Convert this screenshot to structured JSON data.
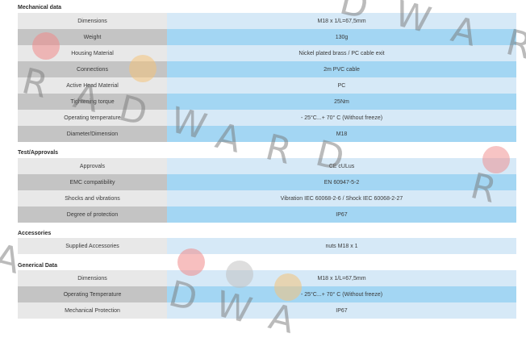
{
  "sections": [
    {
      "title": "Mechanical data",
      "rows": [
        {
          "label": "Dimensions",
          "value": "M18 x 1/L=67,5mm"
        },
        {
          "label": "Weight",
          "value": "130g"
        },
        {
          "label": "Housing Material",
          "value": "Nickel plated brass / PC cable exit"
        },
        {
          "label": "Connections",
          "value": "2m PVC cable"
        },
        {
          "label": "Active Head Material",
          "value": "PC"
        },
        {
          "label": "Tightening torque",
          "value": "25Nm"
        },
        {
          "label": "Operating temperature",
          "value": "- 25°C...+ 70° C (Without freeze)"
        },
        {
          "label": "Diameter/Dimension",
          "value": "M18"
        }
      ]
    },
    {
      "title": "Test/Approvals",
      "rows": [
        {
          "label": "Approvals",
          "value": "CE cULus"
        },
        {
          "label": "EMC compatibility",
          "value": "EN 60947-5-2"
        },
        {
          "label": "Shocks and vibrations",
          "value": "Vibration IEC 60068-2-6 / Shock IEC 60068-2-27"
        },
        {
          "label": "Degree of protection",
          "value": "IP67"
        }
      ]
    },
    {
      "title": "Accessories",
      "rows": [
        {
          "label": "Supplied Accessories",
          "value": "nuts M18 x 1"
        }
      ]
    },
    {
      "title": "Generical Data",
      "rows": [
        {
          "label": "Dimensions",
          "value": "M18 x 1/L=67,5mm"
        },
        {
          "label": "Operating Temperature",
          "value": "- 25°C...+ 70° C (Without freeze)"
        },
        {
          "label": "Mechanical Protection",
          "value": "IP67"
        }
      ]
    }
  ],
  "watermark": {
    "letters": [
      "R",
      "A",
      "D",
      "W",
      "A",
      "R",
      "D",
      "W",
      "A",
      "R",
      "D",
      "R",
      "A",
      "D",
      "W",
      "A",
      "R",
      "D",
      "R",
      "A",
      "D",
      "W"
    ],
    "dot_colors": [
      "#f08a8a",
      "#f4c27a",
      "#cccccc"
    ]
  }
}
